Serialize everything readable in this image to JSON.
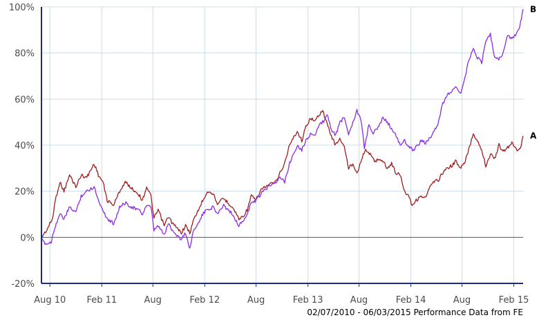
{
  "chart_data": {
    "type": "line",
    "title": "",
    "xlabel": "",
    "ylabel": "",
    "ylim": [
      -20,
      100
    ],
    "y_ticks": [
      "100%",
      "80%",
      "60%",
      "40%",
      "20%",
      "0%",
      "-20%"
    ],
    "y_tick_values": [
      100,
      80,
      60,
      40,
      20,
      0,
      -20
    ],
    "x_range": [
      "2010-07-02",
      "2015-03-06"
    ],
    "x_ticks": [
      {
        "label": "Aug 10",
        "date": "2010-08-01"
      },
      {
        "label": "Feb 11",
        "date": "2011-02-01"
      },
      {
        "label": "Aug",
        "date": "2011-08-01"
      },
      {
        "label": "Feb 12",
        "date": "2012-02-01"
      },
      {
        "label": "Aug",
        "date": "2012-08-01"
      },
      {
        "label": "Feb 13",
        "date": "2013-02-01"
      },
      {
        "label": "Aug",
        "date": "2013-08-01"
      },
      {
        "label": "Feb 14",
        "date": "2014-02-01"
      },
      {
        "label": "Aug",
        "date": "2014-08-01"
      },
      {
        "label": "Feb 15",
        "date": "2015-02-01"
      }
    ],
    "grid": true,
    "baseline_zero": true,
    "caption": "02/07/2010 - 06/03/2015 Performance Data from FE",
    "series": [
      {
        "name": "A",
        "color": "#a01c1c",
        "points": [
          [
            "2010-07-02",
            0
          ],
          [
            "2010-07-20",
            3
          ],
          [
            "2010-08-10",
            8
          ],
          [
            "2010-08-20",
            16
          ],
          [
            "2010-09-05",
            24
          ],
          [
            "2010-09-20",
            20
          ],
          [
            "2010-10-10",
            27
          ],
          [
            "2010-11-01",
            22
          ],
          [
            "2010-11-20",
            27
          ],
          [
            "2010-12-10",
            26
          ],
          [
            "2011-01-05",
            32
          ],
          [
            "2011-01-20",
            27
          ],
          [
            "2011-02-05",
            24
          ],
          [
            "2011-02-20",
            16
          ],
          [
            "2011-03-15",
            14
          ],
          [
            "2011-04-05",
            20
          ],
          [
            "2011-04-25",
            24
          ],
          [
            "2011-05-20",
            21
          ],
          [
            "2011-06-10",
            19
          ],
          [
            "2011-06-25",
            16
          ],
          [
            "2011-07-10",
            22
          ],
          [
            "2011-07-25",
            18
          ],
          [
            "2011-08-05",
            8
          ],
          [
            "2011-08-20",
            12
          ],
          [
            "2011-09-10",
            5
          ],
          [
            "2011-09-25",
            9
          ],
          [
            "2011-10-10",
            6
          ],
          [
            "2011-10-25",
            4
          ],
          [
            "2011-11-10",
            2
          ],
          [
            "2011-11-25",
            5
          ],
          [
            "2011-12-10",
            2
          ],
          [
            "2011-12-25",
            8
          ],
          [
            "2012-01-10",
            12
          ],
          [
            "2012-01-25",
            16
          ],
          [
            "2012-02-10",
            20
          ],
          [
            "2012-03-01",
            19
          ],
          [
            "2012-03-20",
            14
          ],
          [
            "2012-04-05",
            17
          ],
          [
            "2012-04-25",
            15
          ],
          [
            "2012-05-15",
            12
          ],
          [
            "2012-06-01",
            8
          ],
          [
            "2012-06-15",
            9
          ],
          [
            "2012-07-01",
            12
          ],
          [
            "2012-07-15",
            18
          ],
          [
            "2012-08-01",
            16
          ],
          [
            "2012-08-20",
            21
          ],
          [
            "2012-09-05",
            22
          ],
          [
            "2012-09-20",
            23
          ],
          [
            "2012-10-10",
            24
          ],
          [
            "2012-10-25",
            28
          ],
          [
            "2012-11-10",
            32
          ],
          [
            "2012-11-25",
            39
          ],
          [
            "2012-12-10",
            43
          ],
          [
            "2012-12-25",
            46
          ],
          [
            "2013-01-10",
            42
          ],
          [
            "2013-01-25",
            48
          ],
          [
            "2013-02-10",
            52
          ],
          [
            "2013-02-25",
            50
          ],
          [
            "2013-03-10",
            53
          ],
          [
            "2013-03-25",
            55
          ],
          [
            "2013-04-10",
            49
          ],
          [
            "2013-04-25",
            44
          ],
          [
            "2013-05-10",
            40
          ],
          [
            "2013-05-25",
            43
          ],
          [
            "2013-06-10",
            39
          ],
          [
            "2013-06-25",
            30
          ],
          [
            "2013-07-10",
            32
          ],
          [
            "2013-07-25",
            28
          ],
          [
            "2013-08-10",
            34
          ],
          [
            "2013-08-25",
            38
          ],
          [
            "2013-09-10",
            36
          ],
          [
            "2013-09-25",
            33
          ],
          [
            "2013-10-10",
            34
          ],
          [
            "2013-10-25",
            33
          ],
          [
            "2013-11-10",
            30
          ],
          [
            "2013-11-25",
            32
          ],
          [
            "2013-12-10",
            28
          ],
          [
            "2013-12-25",
            27
          ],
          [
            "2014-01-10",
            20
          ],
          [
            "2014-01-25",
            18
          ],
          [
            "2014-02-05",
            14
          ],
          [
            "2014-02-20",
            16
          ],
          [
            "2014-03-10",
            18
          ],
          [
            "2014-03-25",
            17
          ],
          [
            "2014-04-10",
            22
          ],
          [
            "2014-04-25",
            24
          ],
          [
            "2014-05-10",
            25
          ],
          [
            "2014-05-25",
            28
          ],
          [
            "2014-06-10",
            30
          ],
          [
            "2014-06-25",
            31
          ],
          [
            "2014-07-10",
            33
          ],
          [
            "2014-07-25",
            30
          ],
          [
            "2014-08-10",
            32
          ],
          [
            "2014-08-25",
            38
          ],
          [
            "2014-09-10",
            45
          ],
          [
            "2014-09-25",
            42
          ],
          [
            "2014-10-10",
            38
          ],
          [
            "2014-10-25",
            31
          ],
          [
            "2014-11-10",
            36
          ],
          [
            "2014-11-25",
            34
          ],
          [
            "2014-12-10",
            40
          ],
          [
            "2014-12-25",
            37
          ],
          [
            "2015-01-10",
            39
          ],
          [
            "2015-01-25",
            41
          ],
          [
            "2015-02-10",
            38
          ],
          [
            "2015-02-25",
            39
          ],
          [
            "2015-03-06",
            44
          ]
        ]
      },
      {
        "name": "B",
        "color": "#8a2be2",
        "points": [
          [
            "2010-07-02",
            -1
          ],
          [
            "2010-07-20",
            -3
          ],
          [
            "2010-08-05",
            -2
          ],
          [
            "2010-08-20",
            5
          ],
          [
            "2010-09-05",
            10
          ],
          [
            "2010-09-20",
            8
          ],
          [
            "2010-10-10",
            13
          ],
          [
            "2010-11-01",
            11
          ],
          [
            "2010-11-20",
            18
          ],
          [
            "2010-12-10",
            20
          ],
          [
            "2011-01-05",
            22
          ],
          [
            "2011-01-20",
            16
          ],
          [
            "2011-02-05",
            12
          ],
          [
            "2011-02-20",
            8
          ],
          [
            "2011-03-15",
            6
          ],
          [
            "2011-04-05",
            13
          ],
          [
            "2011-04-25",
            15
          ],
          [
            "2011-05-20",
            13
          ],
          [
            "2011-06-10",
            12
          ],
          [
            "2011-06-25",
            10
          ],
          [
            "2011-07-10",
            14
          ],
          [
            "2011-07-25",
            13
          ],
          [
            "2011-08-05",
            3
          ],
          [
            "2011-08-20",
            5
          ],
          [
            "2011-09-10",
            1
          ],
          [
            "2011-09-25",
            6
          ],
          [
            "2011-10-10",
            3
          ],
          [
            "2011-10-25",
            1
          ],
          [
            "2011-11-10",
            -1
          ],
          [
            "2011-11-25",
            2
          ],
          [
            "2011-12-10",
            -5
          ],
          [
            "2011-12-25",
            4
          ],
          [
            "2012-01-10",
            6
          ],
          [
            "2012-01-25",
            10
          ],
          [
            "2012-02-10",
            12
          ],
          [
            "2012-03-01",
            13
          ],
          [
            "2012-03-20",
            10
          ],
          [
            "2012-04-05",
            14
          ],
          [
            "2012-04-25",
            12
          ],
          [
            "2012-05-15",
            9
          ],
          [
            "2012-06-01",
            5
          ],
          [
            "2012-06-15",
            7
          ],
          [
            "2012-07-01",
            10
          ],
          [
            "2012-07-15",
            15
          ],
          [
            "2012-08-01",
            16
          ],
          [
            "2012-08-20",
            19
          ],
          [
            "2012-09-05",
            21
          ],
          [
            "2012-09-20",
            23
          ],
          [
            "2012-10-10",
            24
          ],
          [
            "2012-10-25",
            26
          ],
          [
            "2012-11-10",
            24
          ],
          [
            "2012-11-25",
            31
          ],
          [
            "2012-12-10",
            36
          ],
          [
            "2012-12-25",
            40
          ],
          [
            "2013-01-10",
            38
          ],
          [
            "2013-01-25",
            42
          ],
          [
            "2013-02-10",
            45
          ],
          [
            "2013-02-25",
            44
          ],
          [
            "2013-03-10",
            48
          ],
          [
            "2013-03-25",
            50
          ],
          [
            "2013-04-10",
            53
          ],
          [
            "2013-04-25",
            47
          ],
          [
            "2013-05-10",
            44
          ],
          [
            "2013-05-25",
            50
          ],
          [
            "2013-06-10",
            52
          ],
          [
            "2013-06-25",
            45
          ],
          [
            "2013-07-10",
            50
          ],
          [
            "2013-07-25",
            55
          ],
          [
            "2013-08-10",
            50
          ],
          [
            "2013-08-20",
            38
          ],
          [
            "2013-09-05",
            49
          ],
          [
            "2013-09-20",
            45
          ],
          [
            "2013-10-10",
            48
          ],
          [
            "2013-10-25",
            52
          ],
          [
            "2013-11-10",
            50
          ],
          [
            "2013-11-25",
            47
          ],
          [
            "2013-12-10",
            44
          ],
          [
            "2013-12-25",
            40
          ],
          [
            "2014-01-10",
            42
          ],
          [
            "2014-01-25",
            39
          ],
          [
            "2014-02-10",
            38
          ],
          [
            "2014-02-25",
            40
          ],
          [
            "2014-03-10",
            42
          ],
          [
            "2014-03-25",
            41
          ],
          [
            "2014-04-10",
            43
          ],
          [
            "2014-04-25",
            46
          ],
          [
            "2014-05-10",
            50
          ],
          [
            "2014-05-25",
            58
          ],
          [
            "2014-06-10",
            62
          ],
          [
            "2014-06-25",
            63
          ],
          [
            "2014-07-10",
            66
          ],
          [
            "2014-07-25",
            62
          ],
          [
            "2014-08-10",
            68
          ],
          [
            "2014-08-25",
            77
          ],
          [
            "2014-09-10",
            82
          ],
          [
            "2014-09-25",
            78
          ],
          [
            "2014-10-10",
            76
          ],
          [
            "2014-10-25",
            85
          ],
          [
            "2014-11-10",
            88
          ],
          [
            "2014-11-25",
            78
          ],
          [
            "2014-12-10",
            77
          ],
          [
            "2014-12-25",
            80
          ],
          [
            "2015-01-10",
            88
          ],
          [
            "2015-01-25",
            86
          ],
          [
            "2015-02-10",
            88
          ],
          [
            "2015-02-25",
            93
          ],
          [
            "2015-03-06",
            99
          ]
        ]
      }
    ]
  }
}
